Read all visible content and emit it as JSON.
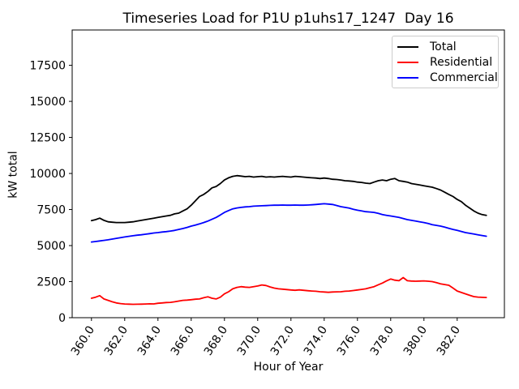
{
  "chart_data": {
    "type": "line",
    "title": "Timeseries Load for P1U p1uhs17_1247  Day 16",
    "xlabel": "Hour of Year",
    "ylabel": "kW total",
    "grid": false,
    "xlim": [
      358.84,
      384.84
    ],
    "ylim": [
      0,
      19950
    ],
    "x_start": 360.0,
    "x_step": 0.25,
    "x_ticks": [
      360,
      362,
      364,
      366,
      368,
      370,
      372,
      374,
      376,
      378,
      380,
      382
    ],
    "x_tick_labels": [
      "360.0",
      "362.0",
      "364.0",
      "366.0",
      "368.0",
      "370.0",
      "372.0",
      "374.0",
      "376.0",
      "378.0",
      "380.0",
      "382.0"
    ],
    "y_ticks": [
      0,
      2500,
      5000,
      7500,
      10000,
      12500,
      15000,
      17500
    ],
    "y_tick_labels": [
      "0",
      "2500",
      "5000",
      "7500",
      "10000",
      "12500",
      "15000",
      "17500"
    ],
    "legend": {
      "position": "upper right",
      "entries": [
        {
          "label": "Total",
          "color": "#000000"
        },
        {
          "label": "Residential",
          "color": "#ff0000"
        },
        {
          "label": "Commercial",
          "color": "#0000ff"
        }
      ]
    },
    "series": [
      {
        "name": "Total",
        "color": "#000000",
        "values": [
          6730,
          6800,
          6900,
          6750,
          6650,
          6620,
          6600,
          6600,
          6600,
          6620,
          6650,
          6700,
          6750,
          6800,
          6850,
          6900,
          6950,
          7000,
          7050,
          7100,
          7200,
          7250,
          7400,
          7550,
          7800,
          8100,
          8400,
          8550,
          8750,
          9000,
          9100,
          9300,
          9550,
          9700,
          9800,
          9850,
          9820,
          9780,
          9800,
          9750,
          9780,
          9800,
          9750,
          9770,
          9750,
          9780,
          9800,
          9770,
          9750,
          9800,
          9780,
          9750,
          9720,
          9700,
          9680,
          9650,
          9680,
          9650,
          9600,
          9580,
          9550,
          9500,
          9480,
          9450,
          9400,
          9380,
          9330,
          9300,
          9400,
          9500,
          9550,
          9500,
          9600,
          9650,
          9500,
          9450,
          9400,
          9300,
          9250,
          9200,
          9150,
          9100,
          9050,
          8950,
          8850,
          8700,
          8550,
          8400,
          8200,
          8050,
          7800,
          7600,
          7400,
          7250,
          7150,
          7100
        ]
      },
      {
        "name": "Residential",
        "color": "#ff0000",
        "values": [
          1350,
          1420,
          1530,
          1300,
          1200,
          1100,
          1020,
          980,
          950,
          940,
          930,
          935,
          940,
          950,
          960,
          955,
          1000,
          1020,
          1050,
          1060,
          1100,
          1150,
          1200,
          1220,
          1250,
          1280,
          1300,
          1380,
          1450,
          1350,
          1300,
          1420,
          1650,
          1800,
          2000,
          2100,
          2150,
          2120,
          2100,
          2150,
          2200,
          2270,
          2230,
          2130,
          2050,
          2000,
          1980,
          1950,
          1920,
          1900,
          1930,
          1900,
          1870,
          1850,
          1830,
          1800,
          1780,
          1760,
          1780,
          1790,
          1800,
          1830,
          1850,
          1880,
          1920,
          1960,
          2000,
          2080,
          2150,
          2280,
          2400,
          2550,
          2680,
          2600,
          2560,
          2780,
          2560,
          2540,
          2530,
          2540,
          2550,
          2530,
          2500,
          2430,
          2350,
          2300,
          2250,
          2050,
          1850,
          1750,
          1650,
          1550,
          1460,
          1430,
          1410,
          1400
        ]
      },
      {
        "name": "Commercial",
        "color": "#0000ff",
        "values": [
          5250,
          5280,
          5320,
          5360,
          5400,
          5450,
          5500,
          5550,
          5600,
          5640,
          5680,
          5720,
          5750,
          5790,
          5830,
          5870,
          5900,
          5940,
          5970,
          6010,
          6050,
          6120,
          6180,
          6260,
          6350,
          6420,
          6500,
          6600,
          6700,
          6820,
          6950,
          7120,
          7300,
          7430,
          7550,
          7610,
          7650,
          7680,
          7700,
          7730,
          7750,
          7760,
          7770,
          7790,
          7800,
          7800,
          7810,
          7800,
          7800,
          7810,
          7800,
          7800,
          7810,
          7830,
          7850,
          7880,
          7900,
          7880,
          7850,
          7780,
          7700,
          7650,
          7600,
          7520,
          7450,
          7400,
          7350,
          7330,
          7300,
          7230,
          7150,
          7100,
          7050,
          7000,
          6950,
          6880,
          6800,
          6750,
          6700,
          6650,
          6600,
          6530,
          6450,
          6400,
          6350,
          6280,
          6200,
          6120,
          6050,
          5980,
          5900,
          5850,
          5800,
          5750,
          5700,
          5650
        ]
      }
    ]
  }
}
